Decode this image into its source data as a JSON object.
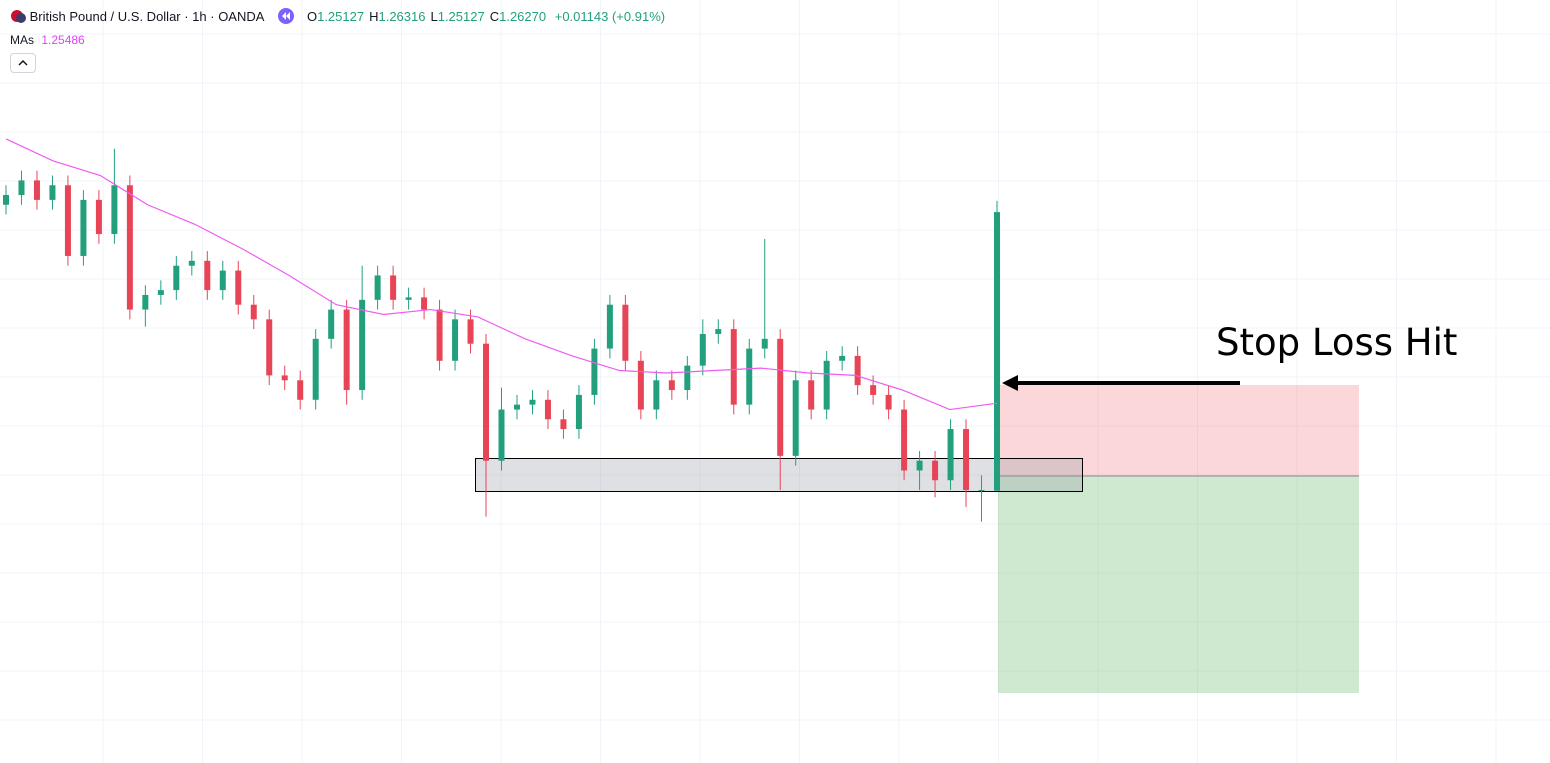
{
  "header": {
    "symbol": "British Pound / U.S. Dollar · 1h · OANDA",
    "ohlc": [
      {
        "key": "O",
        "value": "1.25127"
      },
      {
        "key": "H",
        "value": "1.26316"
      },
      {
        "key": "L",
        "value": "1.25127"
      },
      {
        "key": "C",
        "value": "1.26270"
      }
    ],
    "change": "+0.01143 (+0.91%)",
    "indicator": {
      "name": "MAs",
      "value": "1.25486"
    }
  },
  "annotation": "Stop Loss Hit",
  "chart_data": {
    "type": "candlestick",
    "ylim": [
      1.2401,
      1.2714
    ],
    "up_color": "#22a07e",
    "down_color": "#e84457",
    "open": [
      1.263,
      1.2634,
      1.264,
      1.2632,
      1.2638,
      1.2609,
      1.2632,
      1.2618,
      1.2638,
      1.2587,
      1.2593,
      1.2595,
      1.2605,
      1.2607,
      1.2595,
      1.2603,
      1.2589,
      1.2583,
      1.256,
      1.2558,
      1.255,
      1.2575,
      1.2587,
      1.2554,
      1.2591,
      1.2601,
      1.2591,
      1.2592,
      1.2587,
      1.2566,
      1.2583,
      1.2573,
      1.2525,
      1.2546,
      1.2548,
      1.255,
      1.2542,
      1.2538,
      1.2552,
      1.2571,
      1.2589,
      1.2566,
      1.2546,
      1.2558,
      1.2554,
      1.2564,
      1.2577,
      1.2579,
      1.2548,
      1.2571,
      1.2575,
      1.2527,
      1.2558,
      1.2546,
      1.2566,
      1.2568,
      1.2556,
      1.2552,
      1.2546,
      1.2521,
      1.2525,
      1.2517,
      1.2538,
      1.2513,
      1.25127
    ],
    "high": [
      1.2638,
      1.2644,
      1.2644,
      1.2642,
      1.2642,
      1.2636,
      1.2636,
      1.2653,
      1.2642,
      1.2597,
      1.2599,
      1.2609,
      1.2611,
      1.2611,
      1.2607,
      1.2607,
      1.2593,
      1.2587,
      1.2564,
      1.2562,
      1.2579,
      1.2591,
      1.2591,
      1.2605,
      1.2605,
      1.2605,
      1.2596,
      1.2596,
      1.2591,
      1.2587,
      1.2587,
      1.2577,
      1.2555,
      1.2552,
      1.2554,
      1.2554,
      1.2546,
      1.2556,
      1.2575,
      1.2593,
      1.2593,
      1.257,
      1.2562,
      1.2562,
      1.2568,
      1.2583,
      1.2583,
      1.2583,
      1.2575,
      1.2616,
      1.2579,
      1.2562,
      1.2562,
      1.257,
      1.2572,
      1.2572,
      1.256,
      1.2556,
      1.255,
      1.2529,
      1.2529,
      1.2542,
      1.2542,
      1.2519,
      1.26316
    ],
    "low": [
      1.2626,
      1.263,
      1.2628,
      1.2628,
      1.2605,
      1.2605,
      1.2614,
      1.2614,
      1.2583,
      1.258,
      1.2589,
      1.2591,
      1.2601,
      1.2591,
      1.2591,
      1.2585,
      1.2579,
      1.2556,
      1.2554,
      1.2546,
      1.2546,
      1.2571,
      1.2548,
      1.255,
      1.2587,
      1.2587,
      1.2587,
      1.2583,
      1.2562,
      1.2562,
      1.2569,
      1.2502,
      1.2521,
      1.2542,
      1.2544,
      1.2538,
      1.2534,
      1.2534,
      1.2548,
      1.2567,
      1.2562,
      1.2542,
      1.2542,
      1.255,
      1.255,
      1.256,
      1.2573,
      1.2544,
      1.2544,
      1.2567,
      1.2513,
      1.2523,
      1.2542,
      1.2542,
      1.2562,
      1.2552,
      1.2548,
      1.2542,
      1.2517,
      1.2513,
      1.251,
      1.2513,
      1.2506,
      1.25,
      1.25127
    ],
    "close": [
      1.2634,
      1.264,
      1.2632,
      1.2638,
      1.2609,
      1.2632,
      1.2618,
      1.2638,
      1.2587,
      1.2593,
      1.2595,
      1.2605,
      1.2607,
      1.2595,
      1.2603,
      1.2589,
      1.2583,
      1.256,
      1.2558,
      1.255,
      1.2575,
      1.2587,
      1.2554,
      1.2591,
      1.2601,
      1.2591,
      1.2592,
      1.2587,
      1.2566,
      1.2583,
      1.2573,
      1.2525,
      1.2546,
      1.2548,
      1.255,
      1.2542,
      1.2538,
      1.2552,
      1.2571,
      1.2589,
      1.2566,
      1.2546,
      1.2558,
      1.2554,
      1.2564,
      1.2577,
      1.2579,
      1.2548,
      1.2571,
      1.2575,
      1.2527,
      1.2558,
      1.2546,
      1.2566,
      1.2568,
      1.2556,
      1.2552,
      1.2546,
      1.2521,
      1.2525,
      1.2517,
      1.2538,
      1.2513,
      1.2513,
      1.2627
    ],
    "ma": {
      "color": "#ee5cf0",
      "values": [
        1.2657,
        1.2648,
        1.2642,
        1.263,
        1.2622,
        1.2612,
        1.2601,
        1.2589,
        1.2585,
        1.2587,
        1.2584,
        1.2575,
        1.2568,
        1.2562,
        1.2561,
        1.2562,
        1.2563,
        1.2561,
        1.256,
        1.2554,
        1.2546,
        1.25486
      ]
    }
  }
}
